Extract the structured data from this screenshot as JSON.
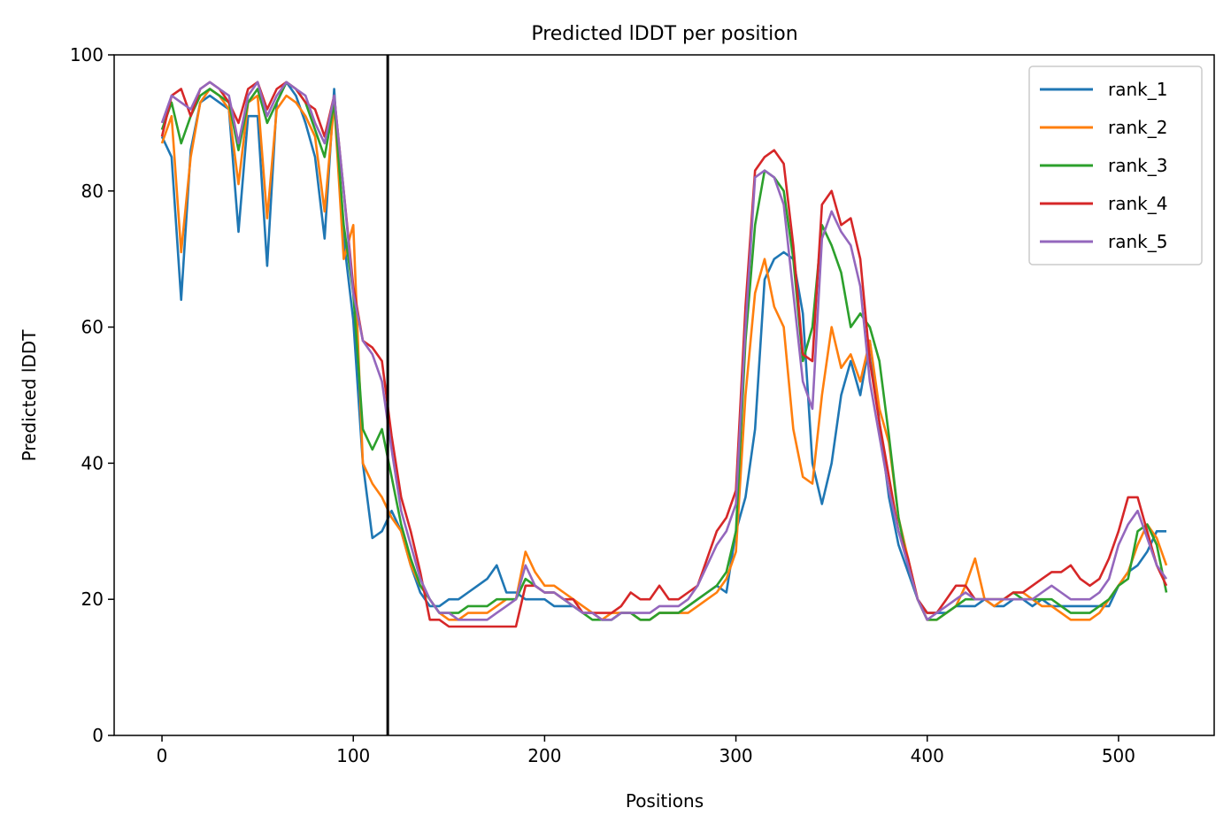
{
  "chart_data": {
    "type": "line",
    "title": "Predicted lDDT per position",
    "xlabel": "Positions",
    "ylabel": "Predicted lDDT",
    "xlim": [
      -25,
      550
    ],
    "ylim": [
      0,
      100
    ],
    "xticks": [
      0,
      100,
      200,
      300,
      400,
      500
    ],
    "yticks": [
      0,
      20,
      40,
      60,
      80,
      100
    ],
    "grid": false,
    "legend_position": "top-right",
    "vline_x": 118,
    "x_step": 5,
    "series": [
      {
        "name": "rank_1",
        "color": "#1f77b4",
        "values": [
          88,
          85,
          64,
          86,
          93,
          94,
          93,
          92,
          74,
          91,
          91,
          69,
          93,
          96,
          94,
          90,
          85,
          73,
          95,
          73,
          61,
          40,
          29,
          30,
          33,
          30,
          25,
          21,
          19,
          19,
          20,
          20,
          21,
          22,
          23,
          25,
          21,
          21,
          20,
          20,
          20,
          19,
          19,
          19,
          18,
          18,
          17,
          17,
          18,
          18,
          17,
          17,
          18,
          18,
          18,
          19,
          20,
          21,
          22,
          21,
          30,
          35,
          45,
          67,
          70,
          71,
          70,
          62,
          40,
          34,
          40,
          50,
          55,
          50,
          58,
          46,
          35,
          28,
          24,
          20,
          18,
          18,
          18,
          19,
          19,
          19,
          20,
          19,
          19,
          20,
          20,
          19,
          20,
          19,
          19,
          19,
          19,
          19,
          19,
          19,
          22,
          24,
          25,
          27,
          30,
          30
        ]
      },
      {
        "name": "rank_2",
        "color": "#ff7f0e",
        "values": [
          87,
          91,
          71,
          85,
          93,
          95,
          94,
          92,
          81,
          93,
          94,
          76,
          92,
          94,
          93,
          91,
          88,
          77,
          93,
          70,
          75,
          40,
          37,
          35,
          32,
          30,
          25,
          22,
          20,
          18,
          17,
          17,
          18,
          18,
          18,
          19,
          20,
          20,
          27,
          24,
          22,
          22,
          21,
          20,
          19,
          18,
          17,
          18,
          18,
          18,
          17,
          17,
          18,
          18,
          18,
          18,
          19,
          20,
          21,
          23,
          27,
          50,
          65,
          70,
          63,
          60,
          45,
          38,
          37,
          50,
          60,
          54,
          56,
          52,
          58,
          48,
          43,
          32,
          26,
          20,
          17,
          17,
          18,
          19,
          22,
          26,
          20,
          19,
          20,
          21,
          21,
          20,
          19,
          19,
          18,
          17,
          17,
          17,
          18,
          20,
          22,
          24,
          28,
          31,
          29,
          25
        ]
      },
      {
        "name": "rank_3",
        "color": "#2ca02c",
        "values": [
          89,
          93,
          87,
          91,
          94,
          95,
          94,
          93,
          86,
          93,
          95,
          90,
          93,
          96,
          95,
          93,
          89,
          85,
          93,
          75,
          65,
          45,
          42,
          45,
          38,
          31,
          26,
          22,
          20,
          18,
          18,
          18,
          19,
          19,
          19,
          20,
          20,
          20,
          23,
          22,
          21,
          21,
          20,
          19,
          18,
          17,
          17,
          17,
          18,
          18,
          17,
          17,
          18,
          18,
          18,
          19,
          20,
          21,
          22,
          24,
          30,
          58,
          75,
          83,
          82,
          80,
          70,
          55,
          60,
          75,
          72,
          68,
          60,
          62,
          60,
          55,
          44,
          32,
          25,
          20,
          17,
          17,
          18,
          19,
          20,
          20,
          20,
          20,
          20,
          21,
          20,
          20,
          20,
          20,
          19,
          18,
          18,
          18,
          19,
          20,
          22,
          23,
          30,
          31,
          28,
          21
        ]
      },
      {
        "name": "rank_4",
        "color": "#d62728",
        "values": [
          88,
          94,
          95,
          91,
          95,
          96,
          95,
          93,
          90,
          95,
          96,
          92,
          95,
          96,
          95,
          93,
          92,
          88,
          94,
          80,
          66,
          58,
          57,
          55,
          44,
          35,
          30,
          24,
          17,
          17,
          16,
          16,
          16,
          16,
          16,
          16,
          16,
          16,
          22,
          22,
          21,
          21,
          20,
          20,
          18,
          18,
          18,
          18,
          19,
          21,
          20,
          20,
          22,
          20,
          20,
          21,
          22,
          26,
          30,
          32,
          36,
          63,
          83,
          85,
          86,
          84,
          72,
          56,
          55,
          78,
          80,
          75,
          76,
          70,
          55,
          46,
          38,
          30,
          26,
          20,
          18,
          18,
          20,
          22,
          22,
          20,
          20,
          20,
          20,
          21,
          21,
          22,
          23,
          24,
          24,
          25,
          23,
          22,
          23,
          26,
          30,
          35,
          35,
          30,
          25,
          22
        ]
      },
      {
        "name": "rank_5",
        "color": "#9467bd",
        "values": [
          90,
          94,
          93,
          92,
          95,
          96,
          95,
          94,
          87,
          94,
          96,
          91,
          94,
          96,
          95,
          94,
          90,
          87,
          94,
          80,
          65,
          58,
          56,
          52,
          42,
          33,
          28,
          23,
          20,
          18,
          18,
          17,
          17,
          17,
          17,
          18,
          19,
          20,
          25,
          22,
          21,
          21,
          20,
          19,
          18,
          18,
          17,
          17,
          18,
          18,
          18,
          18,
          19,
          19,
          19,
          20,
          22,
          25,
          28,
          30,
          34,
          60,
          82,
          83,
          82,
          78,
          65,
          52,
          48,
          73,
          77,
          74,
          72,
          66,
          52,
          44,
          36,
          30,
          25,
          20,
          17,
          18,
          19,
          20,
          21,
          20,
          20,
          20,
          20,
          20,
          20,
          20,
          21,
          22,
          21,
          20,
          20,
          20,
          21,
          23,
          28,
          31,
          33,
          29,
          25,
          23
        ]
      }
    ]
  }
}
